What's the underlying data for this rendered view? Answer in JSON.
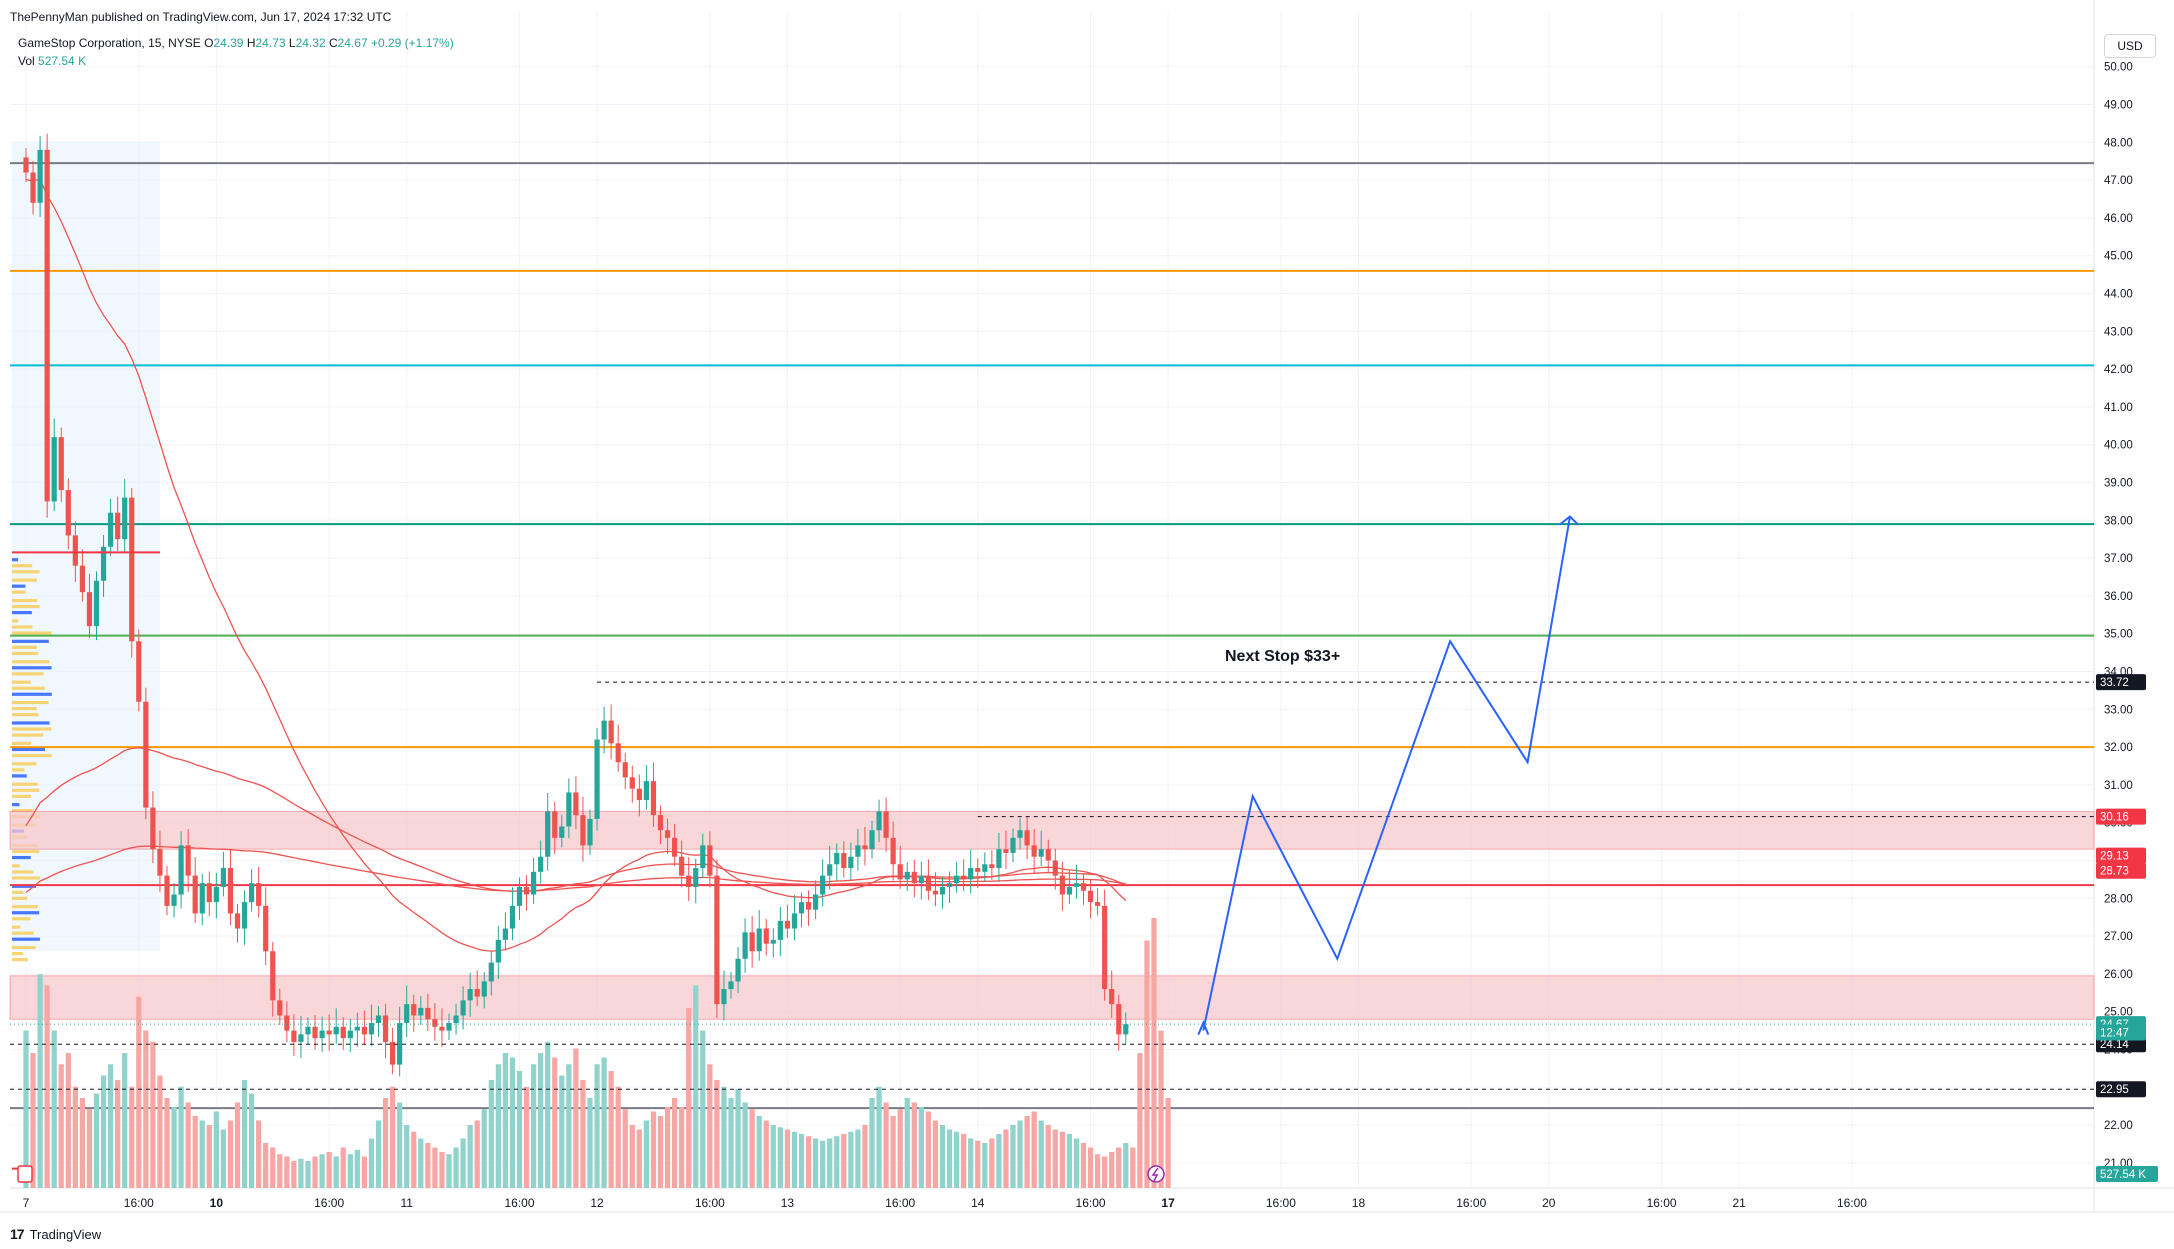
{
  "header": {
    "publisher": "ThePennyMan published on TradingView.com, Jun 17, 2024 17:32 UTC",
    "symbol": "GameStop Corporation, 15, NYSE",
    "o_label": "O",
    "o_value": "24.39",
    "h_label": "H",
    "h_value": "24.73",
    "l_label": "L",
    "l_value": "24.32",
    "c_label": "C",
    "c_value": "24.67",
    "change": "+0.29 (+1.17%)",
    "vol_label": "Vol",
    "vol_value": "527.54 K"
  },
  "currency": "USD",
  "brand": {
    "logo": "17",
    "name": "TradingView"
  },
  "colors": {
    "up": "#26a69a",
    "down": "#ef5350",
    "up_vol": "#8fd3cc",
    "down_vol": "#f7a6a4",
    "projection": "#2962ff",
    "zone": "#f8c9cc",
    "ma": "#ef5350"
  },
  "chart_data": {
    "type": "candlestick",
    "symbol": "GME",
    "interval": "15",
    "ylim": [
      20.5,
      50.5
    ],
    "y_ticks": [
      "21.00",
      "22.00",
      "23.00",
      "24.00",
      "25.00",
      "26.00",
      "27.00",
      "28.00",
      "29.00",
      "30.00",
      "31.00",
      "32.00",
      "33.00",
      "34.00",
      "35.00",
      "36.00",
      "37.00",
      "38.00",
      "39.00",
      "40.00",
      "41.00",
      "42.00",
      "43.00",
      "44.00",
      "45.00",
      "46.00",
      "47.00",
      "48.00",
      "49.00",
      "50.00"
    ],
    "x_ticks": [
      {
        "label": "7",
        "bold": false,
        "idx": 0
      },
      {
        "label": "16:00",
        "bold": false,
        "idx": 16
      },
      {
        "label": "10",
        "bold": true,
        "idx": 27
      },
      {
        "label": "16:00",
        "bold": false,
        "idx": 43
      },
      {
        "label": "11",
        "bold": false,
        "idx": 54
      },
      {
        "label": "16:00",
        "bold": false,
        "idx": 70
      },
      {
        "label": "12",
        "bold": false,
        "idx": 81
      },
      {
        "label": "16:00",
        "bold": false,
        "idx": 97
      },
      {
        "label": "13",
        "bold": false,
        "idx": 108
      },
      {
        "label": "16:00",
        "bold": false,
        "idx": 124
      },
      {
        "label": "14",
        "bold": false,
        "idx": 135
      },
      {
        "label": "16:00",
        "bold": false,
        "idx": 151
      },
      {
        "label": "17",
        "bold": true,
        "idx": 162
      },
      {
        "label": "16:00",
        "bold": false,
        "idx": 178
      },
      {
        "label": "18",
        "bold": false,
        "idx": 189
      },
      {
        "label": "16:00",
        "bold": false,
        "idx": 205
      },
      {
        "label": "20",
        "bold": false,
        "idx": 216
      },
      {
        "label": "16:00",
        "bold": false,
        "idx": 232
      },
      {
        "label": "21",
        "bold": false,
        "idx": 243
      },
      {
        "label": "16:00",
        "bold": false,
        "idx": 259
      }
    ],
    "closes": [
      47.2,
      46.4,
      47.8,
      38.5,
      40.2,
      38.8,
      37.6,
      36.8,
      36.1,
      35.2,
      36.4,
      37.3,
      38.2,
      37.5,
      38.6,
      34.8,
      33.2,
      30.4,
      29.3,
      28.6,
      27.8,
      28.1,
      29.4,
      28.6,
      27.6,
      28.4,
      27.9,
      28.3,
      28.8,
      27.6,
      27.2,
      27.9,
      28.4,
      27.8,
      26.6,
      25.3,
      24.9,
      24.5,
      24.2,
      24.4,
      24.6,
      24.3,
      24.5,
      24.4,
      24.6,
      24.3,
      24.5,
      24.6,
      24.4,
      24.7,
      24.9,
      24.2,
      23.6,
      24.7,
      25.2,
      24.9,
      25.1,
      24.8,
      24.6,
      24.5,
      24.7,
      24.9,
      25.3,
      25.6,
      25.4,
      25.8,
      26.3,
      26.9,
      27.2,
      27.8,
      28.3,
      28.1,
      28.7,
      29.1,
      30.3,
      29.6,
      29.9,
      30.8,
      30.2,
      29.4,
      30.1,
      32.2,
      32.7,
      32.1,
      31.6,
      31.2,
      30.9,
      30.6,
      31.1,
      30.2,
      29.8,
      29.6,
      29.1,
      28.6,
      28.3,
      28.8,
      29.4,
      28.6,
      25.2,
      25.6,
      25.8,
      26.4,
      27.1,
      26.6,
      27.2,
      26.8,
      26.9,
      27.4,
      27.2,
      27.6,
      27.9,
      27.7,
      28.1,
      28.6,
      28.9,
      29.2,
      28.8,
      29.1,
      29.4,
      29.3,
      29.8,
      30.3,
      29.6,
      28.9,
      28.5,
      28.7,
      28.4,
      28.6,
      28.2,
      28.1,
      28.3,
      28.4,
      28.6,
      28.5,
      28.8,
      28.7,
      28.9,
      28.8,
      29.3,
      29.2,
      29.6,
      29.8,
      29.4,
      29.1,
      29.3,
      29.0,
      28.6,
      28.1,
      28.3,
      28.4,
      28.2,
      27.9,
      27.8,
      25.6,
      25.2,
      24.4,
      24.67
    ],
    "last_close": 24.67,
    "vol_scale_max": 120,
    "volumes": [
      70,
      60,
      95,
      90,
      70,
      55,
      60,
      45,
      40,
      35,
      42,
      50,
      55,
      48,
      60,
      45,
      85,
      70,
      65,
      50,
      40,
      36,
      45,
      38,
      32,
      30,
      28,
      34,
      26,
      30,
      38,
      48,
      42,
      30,
      20,
      18,
      15,
      14,
      12,
      13,
      12,
      14,
      15,
      16,
      14,
      18,
      15,
      17,
      14,
      22,
      30,
      40,
      45,
      38,
      28,
      25,
      22,
      20,
      18,
      16,
      15,
      18,
      22,
      28,
      30,
      35,
      48,
      55,
      60,
      58,
      52,
      45,
      55,
      60,
      65,
      58,
      50,
      55,
      62,
      48,
      40,
      55,
      58,
      52,
      45,
      35,
      28,
      26,
      30,
      34,
      32,
      36,
      40,
      36,
      80,
      90,
      70,
      55,
      48,
      45,
      40,
      44,
      38,
      35,
      32,
      30,
      28,
      27,
      26,
      25,
      24,
      23,
      22,
      21,
      22,
      23,
      24,
      25,
      26,
      28,
      40,
      45,
      38,
      32,
      35,
      40,
      38,
      36,
      34,
      30,
      28,
      26,
      25,
      24,
      22,
      21,
      20,
      22,
      24,
      26,
      28,
      30,
      32,
      34,
      30,
      28,
      26,
      25,
      24,
      22,
      20,
      18,
      15,
      14,
      16,
      18,
      20,
      18,
      60,
      110,
      120,
      70,
      40
    ],
    "horizontal_levels": [
      {
        "price": 47.45,
        "color": "#787b86",
        "width": 2
      },
      {
        "price": 44.6,
        "color": "#ff9800",
        "width": 2
      },
      {
        "price": 42.1,
        "color": "#00bcd4",
        "width": 2
      },
      {
        "price": 37.9,
        "color": "#089981",
        "width": 2
      },
      {
        "price": 34.95,
        "color": "#4caf50",
        "width": 2
      },
      {
        "price": 32.0,
        "color": "#ff9800",
        "width": 2
      },
      {
        "price": 28.35,
        "color": "#f23645",
        "width": 2
      },
      {
        "price": 22.45,
        "color": "#787b86",
        "width": 2
      }
    ],
    "dashed_levels": [
      {
        "price": 33.72,
        "from_idx": 81,
        "label": "33.72",
        "label_bg": "#131722"
      },
      {
        "price": 30.16,
        "from_idx": 135,
        "label": "30.16",
        "label_bg": "#f23645"
      },
      {
        "price": 24.14,
        "from_idx": 54,
        "label": "24.14",
        "label_bg": "#131722"
      },
      {
        "price": 22.95,
        "from_idx": 54,
        "label": "22.95",
        "label_bg": "#131722"
      }
    ],
    "zones": [
      {
        "from": 29.3,
        "to": 30.3
      },
      {
        "from": 24.8,
        "to": 25.95
      }
    ],
    "price_labels": [
      {
        "price": 29.13,
        "text": "29.13",
        "bg": "#f23645"
      },
      {
        "price": 28.73,
        "text": "28.73",
        "bg": "#f23645"
      },
      {
        "price": 24.67,
        "text": "24.67",
        "bg": "#26a69a"
      },
      {
        "price": 24.45,
        "text": "12:47",
        "bg": "#26a69a"
      },
      {
        "price": 20.9,
        "text": "527.54 K",
        "bg": "#26a69a"
      }
    ],
    "projection": {
      "color": "#2962ff",
      "points": [
        [
          167,
          24.5
        ],
        [
          174,
          30.7
        ],
        [
          186,
          26.4
        ],
        [
          202,
          34.8
        ],
        [
          213,
          31.6
        ],
        [
          219,
          38.1
        ]
      ],
      "arrow_at_end": true
    },
    "annotation": {
      "text": "Next Stop $33+",
      "price": 34.3,
      "idx": 180
    }
  }
}
